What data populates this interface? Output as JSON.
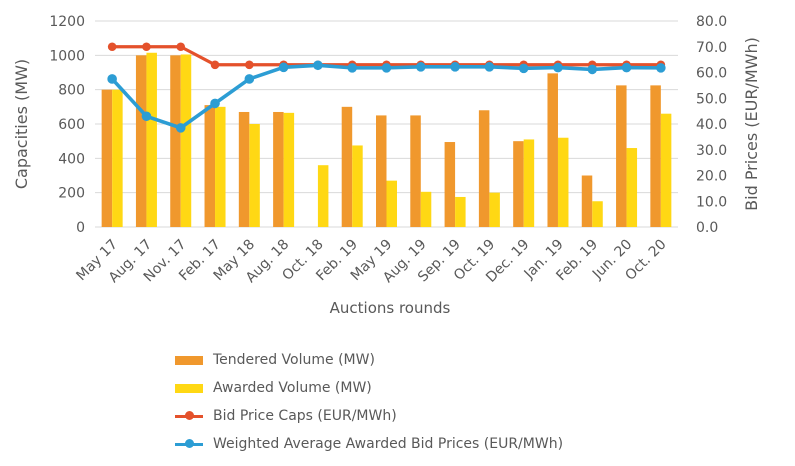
{
  "figure": {
    "left_axis": {
      "title": "Capacities (MW)",
      "ticks": [
        "1200",
        "1000",
        "800",
        "600",
        "400",
        "200",
        "0"
      ],
      "tick_values": [
        1200,
        1000,
        800,
        600,
        400,
        200,
        0
      ]
    },
    "right_axis": {
      "title": "Bid Prices (EUR/MWh)",
      "ticks": [
        "80.0",
        "70.0",
        "60.0",
        "50.0",
        "40.0",
        "30.0",
        "20.0",
        "10.0",
        "0.0"
      ],
      "tick_values": [
        80,
        70,
        60,
        50,
        40,
        30,
        20,
        10,
        0
      ]
    },
    "x_axis": {
      "title": "Auctions rounds"
    },
    "legend": [
      {
        "label": "Tendered Volume (MW)",
        "swatch": "bar",
        "color": "#F0982D"
      },
      {
        "label": "Awarded Volume (MW)",
        "swatch": "bar",
        "color": "#FFD814"
      },
      {
        "label": "Bid Price Caps (EUR/MWh)",
        "swatch": "line",
        "color": "#E4512B"
      },
      {
        "label": "Weighted Average Awarded Bid Prices (EUR/MWh)",
        "swatch": "line",
        "color": "#2C9DD4"
      }
    ],
    "colors": {
      "gridline": "#D9D9D9",
      "axis_text": "#595959",
      "background": "#FFFFFF"
    }
  },
  "chart_data": {
    "type": "bar",
    "subtype": "bar-line combo, dual axis",
    "title": "",
    "xlabel": "Auctions rounds",
    "ylabel_left": "Capacities (MW)",
    "ylabel_right": "Bid Prices (EUR/MWh)",
    "ylim_left": [
      0,
      1200
    ],
    "ylim_right": [
      0,
      80
    ],
    "grid": true,
    "legend_position": "bottom-left",
    "categories": [
      "May 17",
      "Aug. 17",
      "Nov. 17",
      "Feb. 17",
      "May 18",
      "Aug. 18",
      "Oct. 18",
      "Feb. 19",
      "May 19",
      "Aug. 19",
      "Sep. 19",
      "Oct. 19",
      "Dec. 19",
      "Jan. 19",
      "Feb. 19",
      "Jun. 20",
      "Oct. 20"
    ],
    "series": [
      {
        "name": "Tendered Volume (MW)",
        "type": "bar",
        "axis": "left",
        "color": "#F0982D",
        "values": [
          800,
          1000,
          1000,
          710,
          670,
          670,
          null,
          700,
          650,
          650,
          495,
          680,
          500,
          895,
          300,
          825,
          825
        ]
      },
      {
        "name": "Awarded Volume (MW)",
        "type": "bar",
        "axis": "left",
        "color": "#FFD814",
        "values": [
          800,
          1015,
          1005,
          700,
          600,
          665,
          360,
          475,
          270,
          205,
          175,
          200,
          510,
          520,
          150,
          460,
          660
        ]
      },
      {
        "name": "Bid Price Caps (EUR/MWh)",
        "type": "line",
        "axis": "right",
        "color": "#E4512B",
        "values": [
          70,
          70,
          70,
          63,
          63,
          63,
          63,
          63,
          63,
          63,
          63,
          63,
          63,
          63,
          63,
          63,
          63
        ]
      },
      {
        "name": "Weighted Average Awarded Bid Prices (EUR/MWh)",
        "type": "line",
        "axis": "right",
        "color": "#2C9DD4",
        "values": [
          57.5,
          43,
          38.5,
          48,
          57.5,
          62,
          62.8,
          61.8,
          61.8,
          62.2,
          62.2,
          62.2,
          61.6,
          61.9,
          61.2,
          61.9,
          61.8
        ]
      }
    ]
  }
}
